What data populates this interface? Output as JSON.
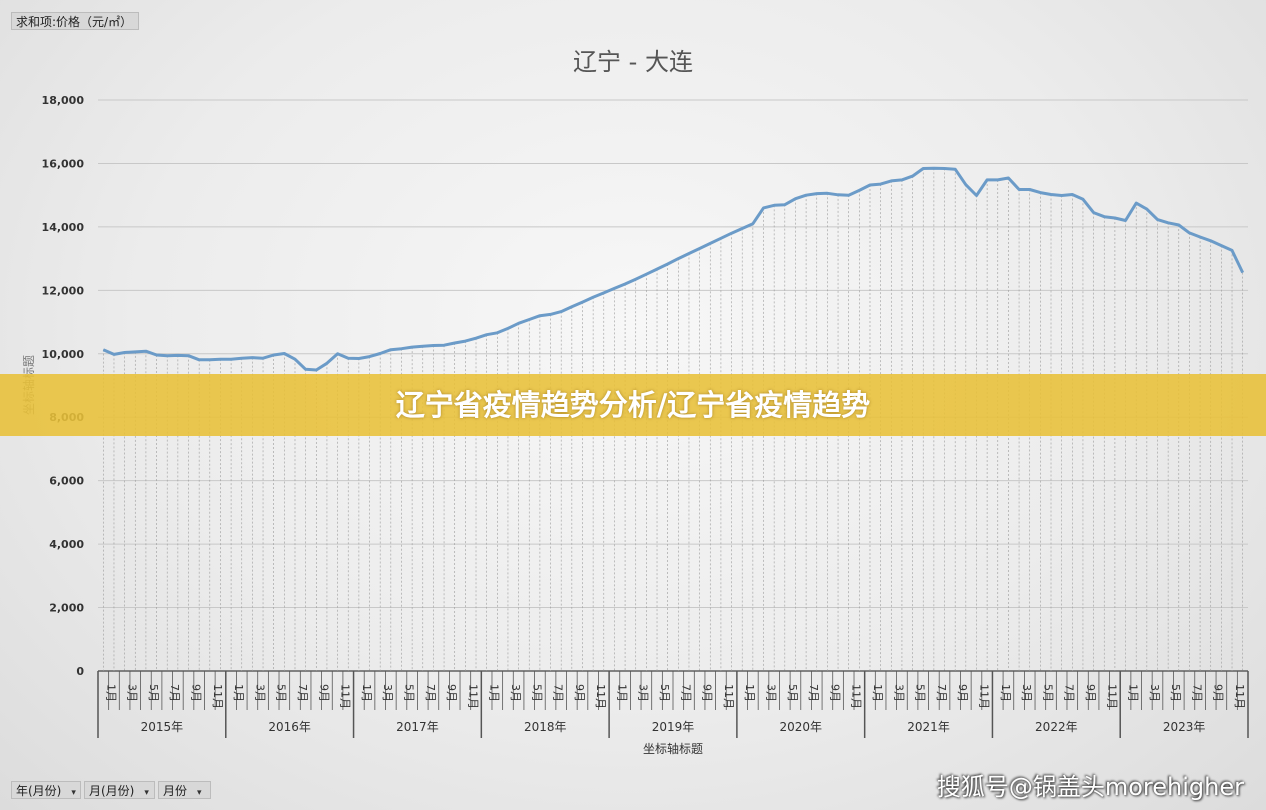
{
  "pivot": {
    "value_field": "求和项:价格（元/㎡）",
    "row_fields": [
      {
        "label": "年(月份)"
      },
      {
        "label": "月(月份)"
      },
      {
        "label": "月份"
      }
    ]
  },
  "banner": {
    "text": "辽宁省疫情趋势分析/辽宁省疫情趋势"
  },
  "watermark": {
    "text": "搜狐号@锅盖头morehigher"
  },
  "colors": {
    "line": "#6b9bc8",
    "banner": "#e8c038",
    "grid": "#c8c8c8"
  },
  "chart_data": {
    "type": "line",
    "title": "辽宁 - 大连",
    "xlabel": "坐标轴标题",
    "ylabel": "坐标轴标题",
    "ylim": [
      0,
      18000
    ],
    "yticks": [
      "0",
      "2,000",
      "4,000",
      "6,000",
      "8,000",
      "10,000",
      "12,000",
      "14,000",
      "16,000",
      "18,000"
    ],
    "years": [
      "2015年",
      "2016年",
      "2017年",
      "2018年",
      "2019年",
      "2020年",
      "2021年",
      "2022年",
      "2023年"
    ],
    "month_labels": [
      "1月",
      "3月",
      "5月",
      "7月",
      "9月",
      "11月"
    ],
    "grid": true,
    "legend": "none",
    "series": [
      {
        "values": [
          10130,
          9980,
          10040,
          10060,
          10080,
          9960,
          9940,
          9950,
          9940,
          9810,
          9810,
          9830,
          9830,
          9860,
          9880,
          9860,
          9960,
          10010,
          9830,
          9510,
          9490,
          9700,
          10000,
          9860,
          9850,
          9910,
          10010,
          10130,
          10160,
          10210,
          10240,
          10260,
          10270,
          10340,
          10400,
          10490,
          10600,
          10660,
          10800,
          10960,
          11080,
          11200,
          11240,
          11330,
          11480,
          11630,
          11780,
          11920,
          12060,
          12200,
          12350,
          12510,
          12670,
          12830,
          13000,
          13160,
          13320,
          13480,
          13640,
          13800,
          13950,
          14100,
          14600,
          14680,
          14700,
          14890,
          15000,
          15050,
          15060,
          15010,
          15000,
          15150,
          15320,
          15350,
          15450,
          15480,
          15600,
          15840,
          15850,
          15840,
          15820,
          15330,
          14990,
          15480,
          15480,
          15540,
          15180,
          15180,
          15080,
          15020,
          14990,
          15020,
          14870,
          14450,
          14320,
          14280,
          14200,
          14750,
          14560,
          14230,
          14130,
          14060,
          13810,
          13680,
          13560,
          13410,
          13260,
          12560
        ]
      }
    ]
  }
}
